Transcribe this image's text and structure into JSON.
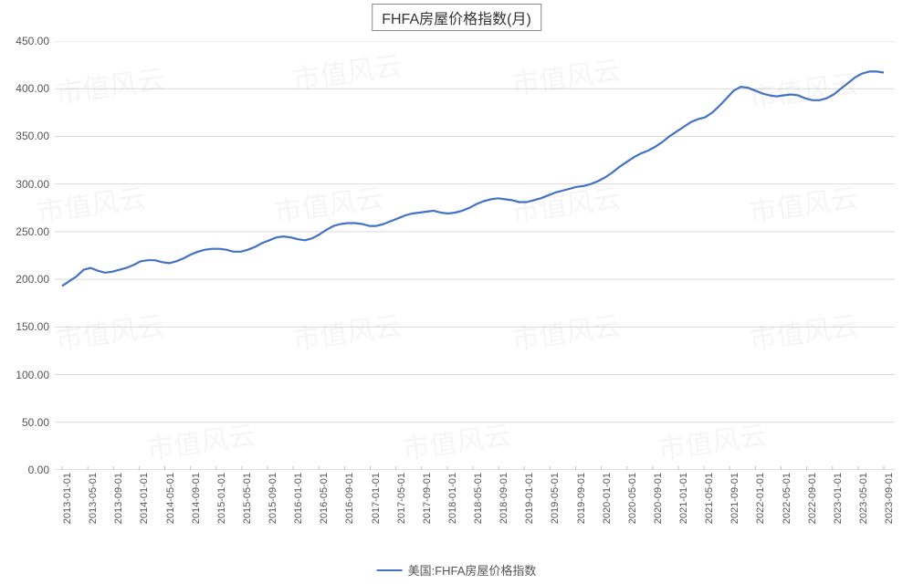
{
  "chart": {
    "type": "line",
    "title": "FHFA房屋价格指数(月)",
    "title_fontsize": 16,
    "title_border_color": "#888888",
    "background_color": "#ffffff",
    "grid_color": "#d9d9d9",
    "axis_line_color": "#bfbfbf",
    "label_color": "#555555",
    "label_fontsize": 12,
    "x_label_fontsize": 11,
    "x_label_rotation": -90,
    "line_color": "#4472c4",
    "line_width": 2.2,
    "ylim": [
      0,
      450
    ],
    "ytick_step": 50,
    "y_ticks": [
      "0.00",
      "50.00",
      "100.00",
      "150.00",
      "200.00",
      "250.00",
      "300.00",
      "350.00",
      "400.00",
      "450.00"
    ],
    "x_labels": [
      "2013-01-01",
      "2013-05-01",
      "2013-09-01",
      "2014-01-01",
      "2014-05-01",
      "2014-09-01",
      "2015-01-01",
      "2015-05-01",
      "2015-09-01",
      "2016-01-01",
      "2016-05-01",
      "2016-09-01",
      "2017-01-01",
      "2017-05-01",
      "2017-09-01",
      "2018-01-01",
      "2018-05-01",
      "2018-09-01",
      "2019-01-01",
      "2019-05-01",
      "2019-09-01",
      "2020-01-01",
      "2020-05-01",
      "2020-09-01",
      "2021-01-01",
      "2021-05-01",
      "2021-09-01",
      "2022-01-01",
      "2022-05-01",
      "2022-09-01",
      "2023-01-01",
      "2023-05-01",
      "2023-09-01"
    ],
    "series": [
      {
        "name": "美国:FHFA房屋价格指数",
        "color": "#4472c4",
        "values": [
          193,
          198,
          203,
          210,
          212,
          209,
          207,
          208,
          210,
          212,
          215,
          219,
          220,
          220,
          218,
          217,
          219,
          222,
          226,
          229,
          231,
          232,
          232,
          231,
          229,
          229,
          231,
          234,
          238,
          241,
          244,
          245,
          244,
          242,
          241,
          243,
          247,
          252,
          256,
          258,
          259,
          259,
          258,
          256,
          256,
          258,
          261,
          264,
          267,
          269,
          270,
          271,
          272,
          270,
          269,
          270,
          272,
          275,
          279,
          282,
          284,
          285,
          284,
          283,
          281,
          281,
          283,
          285,
          288,
          291,
          293,
          295,
          297,
          298,
          300,
          303,
          307,
          312,
          318,
          323,
          328,
          332,
          335,
          339,
          344,
          350,
          355,
          360,
          365,
          368,
          370,
          375,
          382,
          390,
          398,
          402,
          401,
          398,
          395,
          393,
          392,
          393,
          394,
          393,
          390,
          388,
          388,
          390,
          394,
          400,
          406,
          412,
          416,
          418,
          418,
          417
        ]
      }
    ],
    "legend_label": "美国:FHFA房屋价格指数",
    "watermark_text": "市值风云",
    "watermark_color": "rgba(120,120,120,0.07)"
  }
}
